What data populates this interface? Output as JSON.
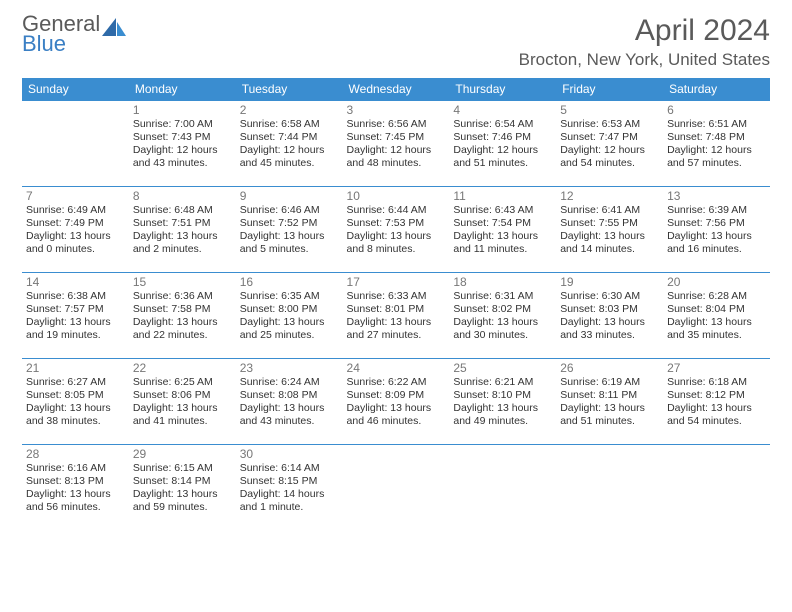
{
  "logo": {
    "line1": "General",
    "line2": "Blue"
  },
  "title": "April 2024",
  "location": "Brocton, New York, United States",
  "colors": {
    "header_bg": "#3a8dd0",
    "header_fg": "#ffffff",
    "border": "#3a8dd0",
    "text": "#333333",
    "muted": "#777777",
    "logo_gray": "#5a5a5a",
    "logo_blue": "#3a7fc4"
  },
  "dayHeaders": [
    "Sunday",
    "Monday",
    "Tuesday",
    "Wednesday",
    "Thursday",
    "Friday",
    "Saturday"
  ],
  "weeks": [
    [
      null,
      {
        "n": "1",
        "sr": "7:00 AM",
        "ss": "7:43 PM",
        "dl": "12 hours and 43 minutes."
      },
      {
        "n": "2",
        "sr": "6:58 AM",
        "ss": "7:44 PM",
        "dl": "12 hours and 45 minutes."
      },
      {
        "n": "3",
        "sr": "6:56 AM",
        "ss": "7:45 PM",
        "dl": "12 hours and 48 minutes."
      },
      {
        "n": "4",
        "sr": "6:54 AM",
        "ss": "7:46 PM",
        "dl": "12 hours and 51 minutes."
      },
      {
        "n": "5",
        "sr": "6:53 AM",
        "ss": "7:47 PM",
        "dl": "12 hours and 54 minutes."
      },
      {
        "n": "6",
        "sr": "6:51 AM",
        "ss": "7:48 PM",
        "dl": "12 hours and 57 minutes."
      }
    ],
    [
      {
        "n": "7",
        "sr": "6:49 AM",
        "ss": "7:49 PM",
        "dl": "13 hours and 0 minutes."
      },
      {
        "n": "8",
        "sr": "6:48 AM",
        "ss": "7:51 PM",
        "dl": "13 hours and 2 minutes."
      },
      {
        "n": "9",
        "sr": "6:46 AM",
        "ss": "7:52 PM",
        "dl": "13 hours and 5 minutes."
      },
      {
        "n": "10",
        "sr": "6:44 AM",
        "ss": "7:53 PM",
        "dl": "13 hours and 8 minutes."
      },
      {
        "n": "11",
        "sr": "6:43 AM",
        "ss": "7:54 PM",
        "dl": "13 hours and 11 minutes."
      },
      {
        "n": "12",
        "sr": "6:41 AM",
        "ss": "7:55 PM",
        "dl": "13 hours and 14 minutes."
      },
      {
        "n": "13",
        "sr": "6:39 AM",
        "ss": "7:56 PM",
        "dl": "13 hours and 16 minutes."
      }
    ],
    [
      {
        "n": "14",
        "sr": "6:38 AM",
        "ss": "7:57 PM",
        "dl": "13 hours and 19 minutes."
      },
      {
        "n": "15",
        "sr": "6:36 AM",
        "ss": "7:58 PM",
        "dl": "13 hours and 22 minutes."
      },
      {
        "n": "16",
        "sr": "6:35 AM",
        "ss": "8:00 PM",
        "dl": "13 hours and 25 minutes."
      },
      {
        "n": "17",
        "sr": "6:33 AM",
        "ss": "8:01 PM",
        "dl": "13 hours and 27 minutes."
      },
      {
        "n": "18",
        "sr": "6:31 AM",
        "ss": "8:02 PM",
        "dl": "13 hours and 30 minutes."
      },
      {
        "n": "19",
        "sr": "6:30 AM",
        "ss": "8:03 PM",
        "dl": "13 hours and 33 minutes."
      },
      {
        "n": "20",
        "sr": "6:28 AM",
        "ss": "8:04 PM",
        "dl": "13 hours and 35 minutes."
      }
    ],
    [
      {
        "n": "21",
        "sr": "6:27 AM",
        "ss": "8:05 PM",
        "dl": "13 hours and 38 minutes."
      },
      {
        "n": "22",
        "sr": "6:25 AM",
        "ss": "8:06 PM",
        "dl": "13 hours and 41 minutes."
      },
      {
        "n": "23",
        "sr": "6:24 AM",
        "ss": "8:08 PM",
        "dl": "13 hours and 43 minutes."
      },
      {
        "n": "24",
        "sr": "6:22 AM",
        "ss": "8:09 PM",
        "dl": "13 hours and 46 minutes."
      },
      {
        "n": "25",
        "sr": "6:21 AM",
        "ss": "8:10 PM",
        "dl": "13 hours and 49 minutes."
      },
      {
        "n": "26",
        "sr": "6:19 AM",
        "ss": "8:11 PM",
        "dl": "13 hours and 51 minutes."
      },
      {
        "n": "27",
        "sr": "6:18 AM",
        "ss": "8:12 PM",
        "dl": "13 hours and 54 minutes."
      }
    ],
    [
      {
        "n": "28",
        "sr": "6:16 AM",
        "ss": "8:13 PM",
        "dl": "13 hours and 56 minutes."
      },
      {
        "n": "29",
        "sr": "6:15 AM",
        "ss": "8:14 PM",
        "dl": "13 hours and 59 minutes."
      },
      {
        "n": "30",
        "sr": "6:14 AM",
        "ss": "8:15 PM",
        "dl": "14 hours and 1 minute."
      },
      null,
      null,
      null,
      null
    ]
  ]
}
